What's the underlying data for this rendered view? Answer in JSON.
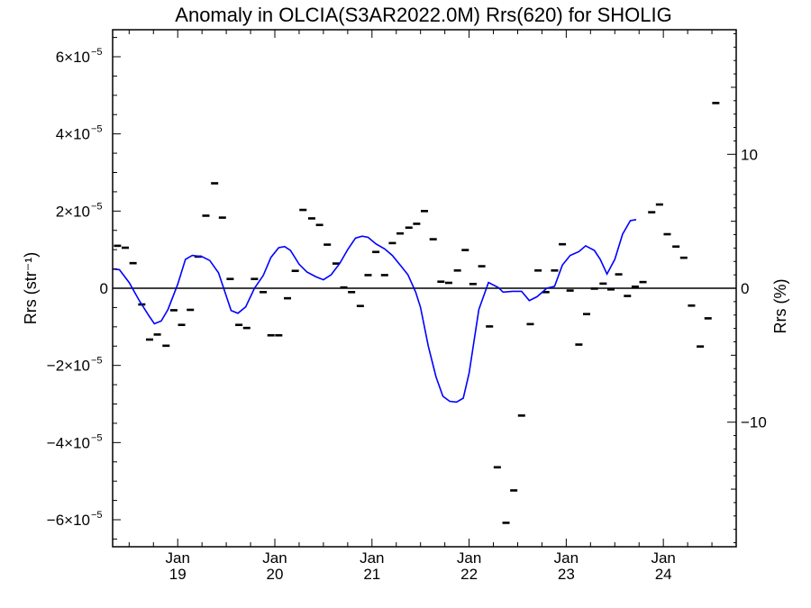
{
  "chart_data": {
    "type": "scatter",
    "title": "Anomaly in OLCIA(S3AR2022.0M) Rrs(620) for SHOLIG",
    "ylabel_left": "Rrs (str⁻¹)",
    "ylabel_right": "Rrs (%)",
    "x_unit": "decimal year",
    "xlim": [
      2018.33,
      2024.75
    ],
    "ylim_left": [
      -6.7e-05,
      6.7e-05
    ],
    "ylim_right": [
      -19.3,
      19.3
    ],
    "x_ticks": [
      {
        "value": 2019.0,
        "month": "Jan",
        "year": "19"
      },
      {
        "value": 2020.0,
        "month": "Jan",
        "year": "20"
      },
      {
        "value": 2021.0,
        "month": "Jan",
        "year": "21"
      },
      {
        "value": 2022.0,
        "month": "Jan",
        "year": "22"
      },
      {
        "value": 2023.0,
        "month": "Jan",
        "year": "23"
      },
      {
        "value": 2024.0,
        "month": "Jan",
        "year": "24"
      }
    ],
    "y_ticks_left": [
      {
        "value": 6e-05,
        "mant": "6×10",
        "exp": "−5"
      },
      {
        "value": 4e-05,
        "mant": "4×10",
        "exp": "−5"
      },
      {
        "value": 2e-05,
        "mant": "2×10",
        "exp": "−5"
      },
      {
        "value": 0,
        "mant": "0",
        "exp": ""
      },
      {
        "value": -2e-05,
        "mant": "−2×10",
        "exp": "−5"
      },
      {
        "value": -4e-05,
        "mant": "−4×10",
        "exp": "−5"
      },
      {
        "value": -6e-05,
        "mant": "−6×10",
        "exp": "−5"
      }
    ],
    "y_ticks_right": [
      {
        "value": 10,
        "label": "10"
      },
      {
        "value": 0,
        "label": "0"
      },
      {
        "value": -10,
        "label": "−10"
      }
    ],
    "zero_line": true,
    "grid": false,
    "series": [
      {
        "marker": "dash",
        "color": "#000000",
        "points": [
          [
            2018.38,
            1.1e-05
          ],
          [
            2018.46,
            1.05e-05
          ],
          [
            2018.54,
            6.5e-06
          ],
          [
            2018.63,
            -4.2e-06
          ],
          [
            2018.71,
            -1.33e-05
          ],
          [
            2018.79,
            -1.2e-05
          ],
          [
            2018.88,
            -1.49e-05
          ],
          [
            2018.96,
            -5.7e-06
          ],
          [
            2019.04,
            -9.5e-06
          ],
          [
            2019.13,
            -5.6e-06
          ],
          [
            2019.21,
            8.2e-06
          ],
          [
            2019.29,
            1.88e-05
          ],
          [
            2019.38,
            2.72e-05
          ],
          [
            2019.46,
            1.83e-05
          ],
          [
            2019.54,
            2.4e-06
          ],
          [
            2019.63,
            -9.5e-06
          ],
          [
            2019.71,
            -1.03e-05
          ],
          [
            2019.79,
            2.4e-06
          ],
          [
            2019.88,
            -1e-06
          ],
          [
            2019.96,
            -1.22e-05
          ],
          [
            2020.04,
            -1.22e-05
          ],
          [
            2020.13,
            -2.6e-06
          ],
          [
            2020.21,
            4.5e-06
          ],
          [
            2020.29,
            2.03e-05
          ],
          [
            2020.38,
            1.81e-05
          ],
          [
            2020.46,
            1.64e-05
          ],
          [
            2020.54,
            1.13e-05
          ],
          [
            2020.63,
            6.4e-06
          ],
          [
            2020.71,
            2e-07
          ],
          [
            2020.79,
            -1e-06
          ],
          [
            2020.88,
            -4.6e-06
          ],
          [
            2020.96,
            3.4e-06
          ],
          [
            2021.04,
            9.4e-06
          ],
          [
            2021.13,
            3.4e-06
          ],
          [
            2021.21,
            1.17e-05
          ],
          [
            2021.29,
            1.42e-05
          ],
          [
            2021.38,
            1.57e-05
          ],
          [
            2021.46,
            1.67e-05
          ],
          [
            2021.54,
            2e-05
          ],
          [
            2021.63,
            1.27e-05
          ],
          [
            2021.71,
            1.7e-06
          ],
          [
            2021.79,
            1.4e-06
          ],
          [
            2021.88,
            4.6e-06
          ],
          [
            2021.96,
            9.9e-06
          ],
          [
            2022.04,
            1.1e-06
          ],
          [
            2022.13,
            5.7e-06
          ],
          [
            2022.21,
            -9.9e-06
          ],
          [
            2022.29,
            -4.64e-05
          ],
          [
            2022.38,
            -6.08e-05
          ],
          [
            2022.46,
            -5.24e-05
          ],
          [
            2022.54,
            -3.3e-05
          ],
          [
            2022.63,
            -9.3e-06
          ],
          [
            2022.71,
            4.6e-06
          ],
          [
            2022.79,
            -1e-06
          ],
          [
            2022.88,
            4.6e-06
          ],
          [
            2022.96,
            1.14e-05
          ],
          [
            2023.04,
            -6e-07
          ],
          [
            2023.13,
            -1.46e-05
          ],
          [
            2023.21,
            -6.7e-06
          ],
          [
            2023.29,
            -1e-07
          ],
          [
            2023.38,
            1.2e-06
          ],
          [
            2023.46,
            -3e-07
          ],
          [
            2023.54,
            3.6e-06
          ],
          [
            2023.63,
            -2e-06
          ],
          [
            2023.71,
            4e-07
          ],
          [
            2023.79,
            1.6e-06
          ],
          [
            2023.88,
            1.97e-05
          ],
          [
            2023.96,
            2.17e-05
          ],
          [
            2024.04,
            1.4e-05
          ],
          [
            2024.13,
            1.08e-05
          ],
          [
            2024.21,
            7.9e-06
          ],
          [
            2024.29,
            -4.5e-06
          ],
          [
            2024.38,
            -1.51e-05
          ],
          [
            2024.46,
            -7.8e-06
          ],
          [
            2024.54,
            4.8e-05
          ]
        ]
      },
      {
        "marker": "line",
        "color": "#0000ff",
        "points": [
          [
            2018.33,
            5e-06
          ],
          [
            2018.4,
            4.8e-06
          ],
          [
            2018.5,
            1.5e-06
          ],
          [
            2018.6,
            -3e-06
          ],
          [
            2018.7,
            -7e-06
          ],
          [
            2018.76,
            -9.2e-06
          ],
          [
            2018.83,
            -8.5e-06
          ],
          [
            2018.9,
            -5.5e-06
          ],
          [
            2019.0,
            1e-06
          ],
          [
            2019.08,
            7.5e-06
          ],
          [
            2019.15,
            8.5e-06
          ],
          [
            2019.25,
            8.2e-06
          ],
          [
            2019.33,
            7.2e-06
          ],
          [
            2019.42,
            4e-06
          ],
          [
            2019.5,
            -2e-06
          ],
          [
            2019.55,
            -5.8e-06
          ],
          [
            2019.62,
            -6.5e-06
          ],
          [
            2019.7,
            -4.8e-06
          ],
          [
            2019.79,
            0.0
          ],
          [
            2019.88,
            3.3e-06
          ],
          [
            2019.96,
            8e-06
          ],
          [
            2020.04,
            1.05e-05
          ],
          [
            2020.1,
            1.08e-05
          ],
          [
            2020.16,
            9.8e-06
          ],
          [
            2020.25,
            6.2e-06
          ],
          [
            2020.33,
            4.2e-06
          ],
          [
            2020.42,
            3e-06
          ],
          [
            2020.5,
            2.2e-06
          ],
          [
            2020.58,
            3.5e-06
          ],
          [
            2020.67,
            6.5e-06
          ],
          [
            2020.75,
            1e-05
          ],
          [
            2020.83,
            1.3e-05
          ],
          [
            2020.9,
            1.35e-05
          ],
          [
            2020.96,
            1.32e-05
          ],
          [
            2021.04,
            1.15e-05
          ],
          [
            2021.13,
            1.02e-05
          ],
          [
            2021.21,
            8.5e-06
          ],
          [
            2021.29,
            6e-06
          ],
          [
            2021.37,
            3.5e-06
          ],
          [
            2021.45,
            -1e-06
          ],
          [
            2021.5,
            -5e-06
          ],
          [
            2021.58,
            -1.5e-05
          ],
          [
            2021.66,
            -2.3e-05
          ],
          [
            2021.73,
            -2.8e-05
          ],
          [
            2021.8,
            -2.93e-05
          ],
          [
            2021.87,
            -2.95e-05
          ],
          [
            2021.94,
            -2.85e-05
          ],
          [
            2022.0,
            -2.2e-05
          ],
          [
            2022.1,
            -5.5e-06
          ],
          [
            2022.2,
            1.5e-06
          ],
          [
            2022.3,
            2e-07
          ],
          [
            2022.35,
            -1e-06
          ],
          [
            2022.45,
            -8e-07
          ],
          [
            2022.54,
            -8e-07
          ],
          [
            2022.62,
            -3.2e-06
          ],
          [
            2022.7,
            -2.2e-06
          ],
          [
            2022.8,
            0.0
          ],
          [
            2022.88,
            5e-07
          ],
          [
            2022.96,
            6e-06
          ],
          [
            2023.04,
            8.5e-06
          ],
          [
            2023.13,
            9.5e-06
          ],
          [
            2023.2,
            1.1e-05
          ],
          [
            2023.29,
            9.8e-06
          ],
          [
            2023.35,
            7.5e-06
          ],
          [
            2023.42,
            3.7e-06
          ],
          [
            2023.5,
            7.5e-06
          ],
          [
            2023.58,
            1.4e-05
          ],
          [
            2023.66,
            1.75e-05
          ],
          [
            2023.72,
            1.78e-05
          ]
        ]
      }
    ]
  }
}
